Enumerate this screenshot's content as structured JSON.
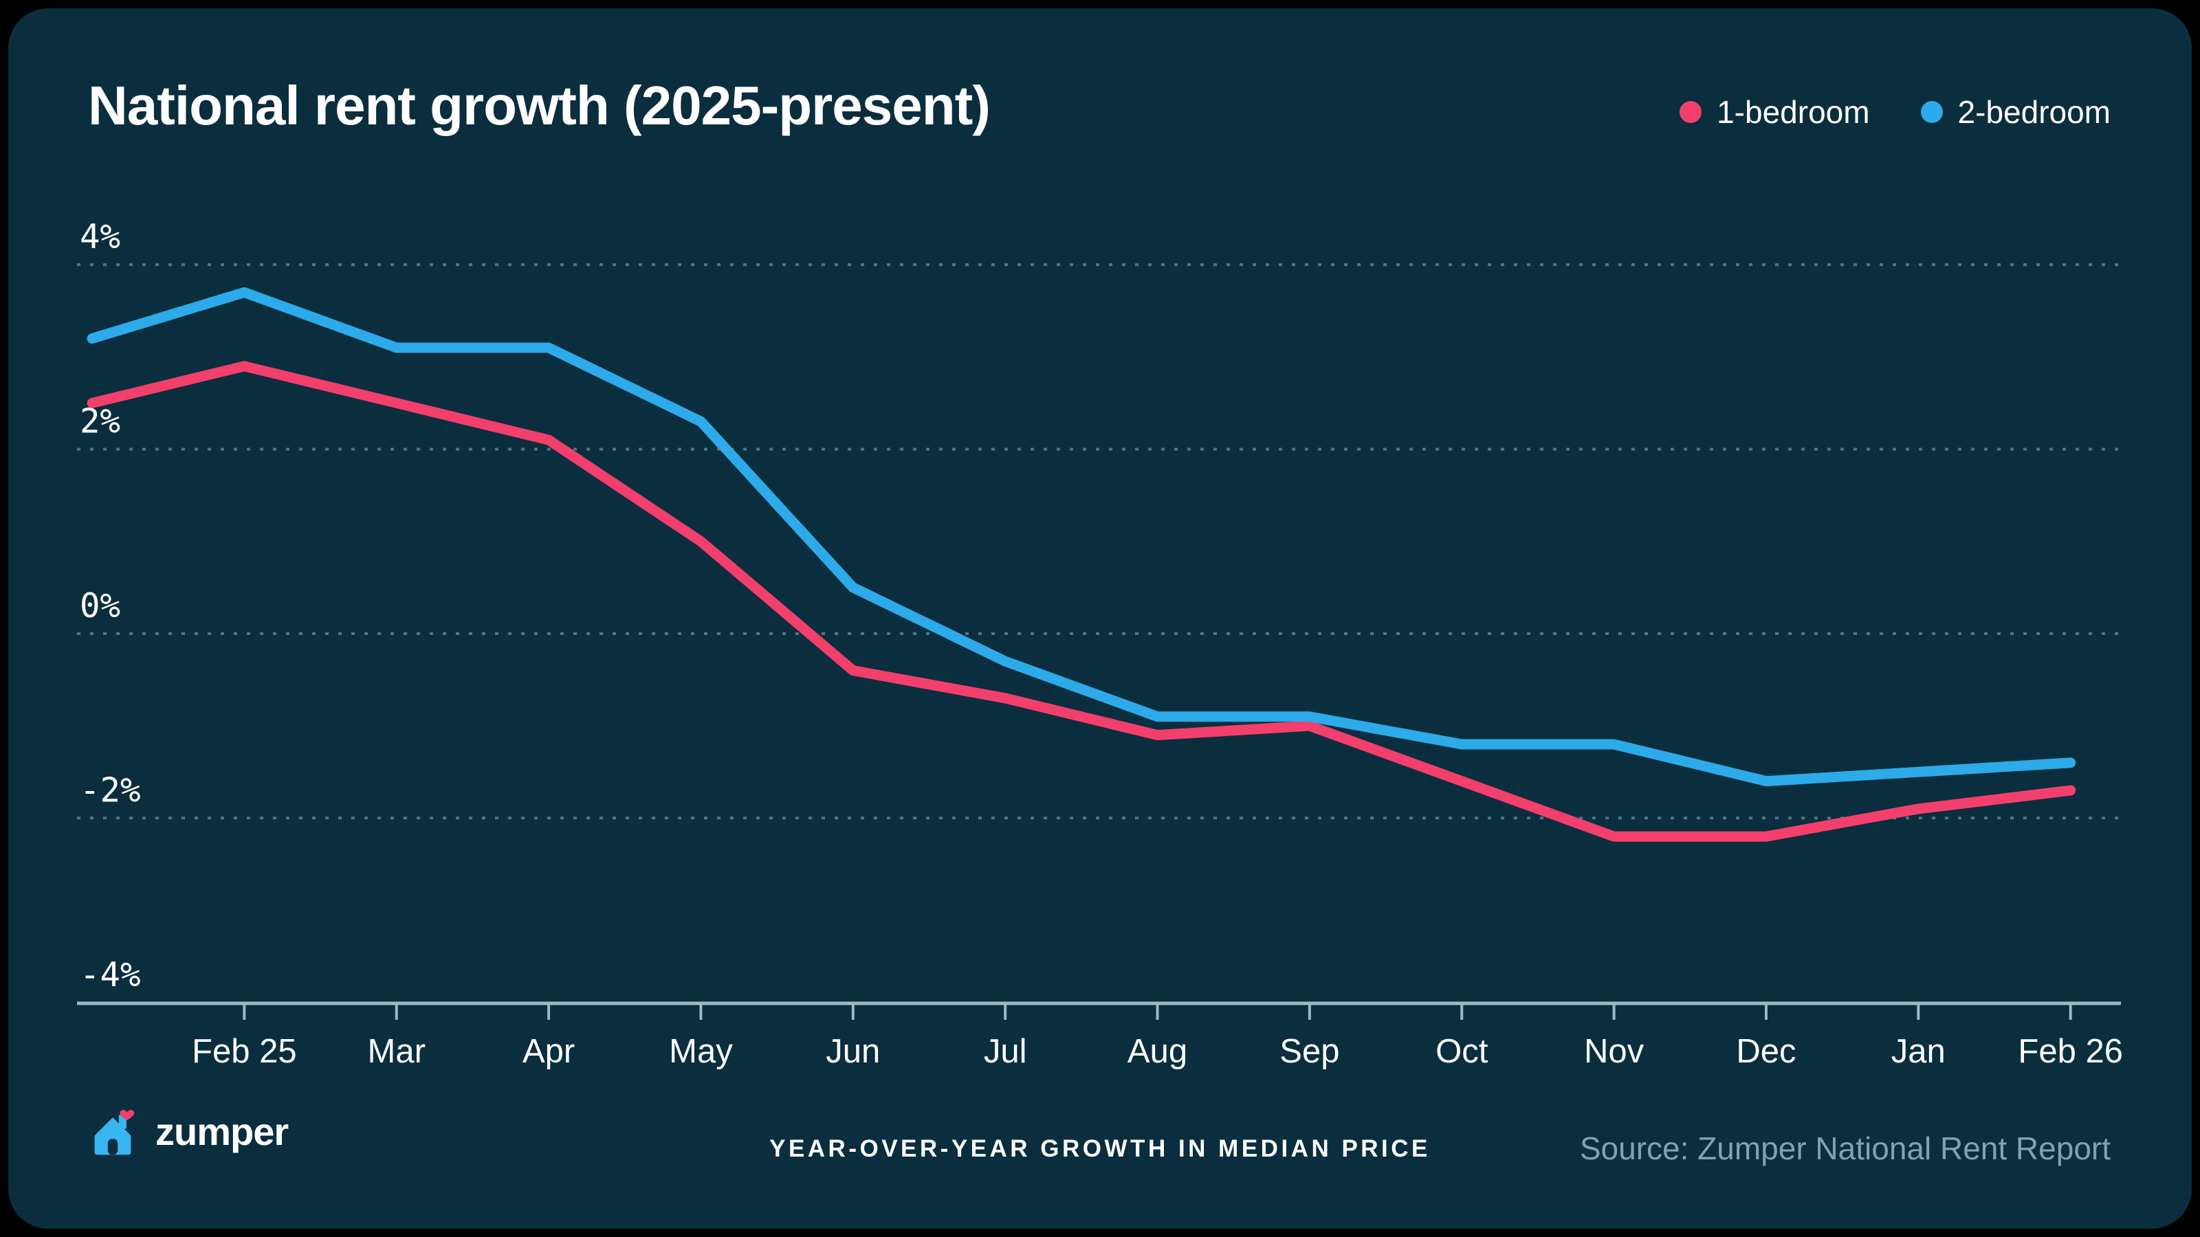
{
  "title": "National rent growth (2025-present)",
  "legend": {
    "items": [
      {
        "label": "1-bedroom",
        "color": "#F23F6C"
      },
      {
        "label": "2-bedroom",
        "color": "#2DAAE9"
      }
    ]
  },
  "footer": {
    "brand": "zumper",
    "caption": "YEAR-OVER-YEAR GROWTH IN MEDIAN PRICE",
    "source": "Source: Zumper National Rent Report"
  },
  "colors": {
    "background": "#0B2E3E",
    "frame": "#000000",
    "one_bedroom": "#F23F6C",
    "two_bedroom": "#2DAAE9",
    "axis": "#9CB9C4",
    "gridline": "#8FB0BD",
    "source_text": "#7FA3B3",
    "heart": "#F23F6C",
    "logo_house": "#38B6F1"
  },
  "chart_data": {
    "type": "line",
    "categories": [
      "",
      "Feb 25",
      "Mar",
      "Apr",
      "May",
      "Jun",
      "Jul",
      "Aug",
      "Sep",
      "Oct",
      "Nov",
      "Dec",
      "Jan",
      "Feb 26"
    ],
    "series": [
      {
        "name": "1-bedroom",
        "color": "#F23F6C",
        "values": [
          2.5,
          2.9,
          2.5,
          2.1,
          1.0,
          -0.4,
          -0.7,
          -1.1,
          -1.0,
          -1.6,
          -2.2,
          -2.2,
          -1.9,
          -1.7
        ]
      },
      {
        "name": "2-bedroom",
        "color": "#2DAAE9",
        "values": [
          3.2,
          3.7,
          3.1,
          3.1,
          2.3,
          0.5,
          -0.3,
          -0.9,
          -0.9,
          -1.2,
          -1.2,
          -1.6,
          -1.5,
          -1.4
        ]
      }
    ],
    "y_ticks": [
      4,
      2,
      0,
      -2,
      -4
    ],
    "y_tick_labels": [
      "4%",
      "2%",
      "0%",
      "-2%",
      "-4%"
    ],
    "gridline_values": [
      4,
      2,
      0,
      -2
    ],
    "ylim": [
      -4.1,
      4.6
    ],
    "grid": "dotted-horizontal",
    "legend_position": "top-right",
    "title": "National rent growth (2025-present)",
    "xlabel": "",
    "ylabel": ""
  }
}
